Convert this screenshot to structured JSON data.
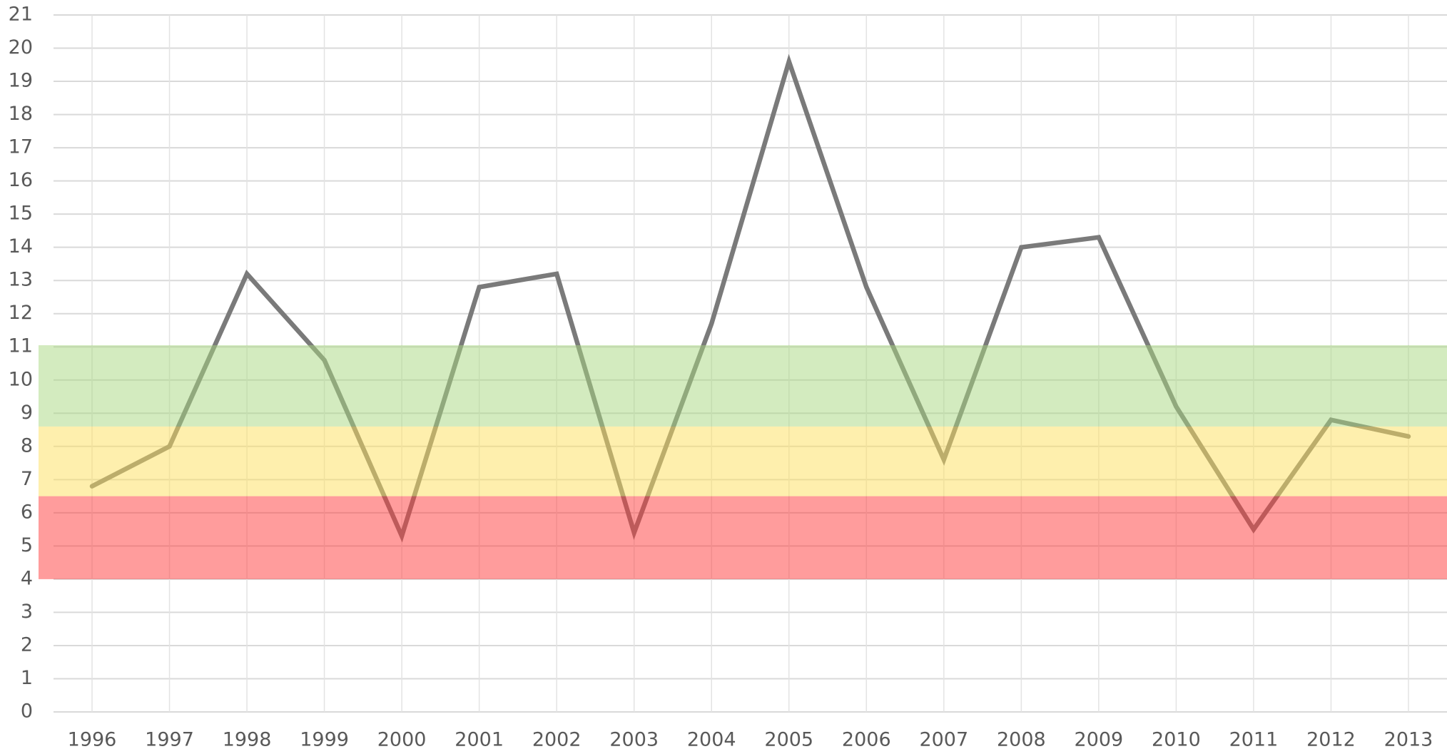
{
  "chart_data": {
    "type": "line",
    "categories": [
      "1996",
      "1997",
      "1998",
      "1999",
      "2000",
      "2001",
      "2002",
      "2003",
      "2004",
      "2005",
      "2006",
      "2007",
      "2008",
      "2009",
      "2010",
      "2011",
      "2012",
      "2013"
    ],
    "series": [
      {
        "color": "#7a7a7a",
        "values": [
          6.8,
          8.0,
          13.2,
          10.6,
          5.3,
          12.8,
          13.2,
          5.4,
          11.7,
          19.6,
          12.8,
          7.6,
          14.0,
          14.3,
          9.2,
          5.5,
          8.8,
          8.3
        ]
      }
    ],
    "bands": [
      {
        "from": 4,
        "to": 6.5,
        "color": "#ff3a3a"
      },
      {
        "from": 6.5,
        "to": 8.6,
        "color": "#fddf5c"
      },
      {
        "from": 8.6,
        "to": 11.05,
        "color": "#a8d77f"
      }
    ],
    "ylim": [
      0,
      21
    ],
    "yticks": [
      0,
      1,
      2,
      3,
      4,
      5,
      6,
      7,
      8,
      9,
      10,
      11,
      12,
      13,
      14,
      15,
      16,
      17,
      18,
      19,
      20,
      21
    ],
    "grid": true
  }
}
